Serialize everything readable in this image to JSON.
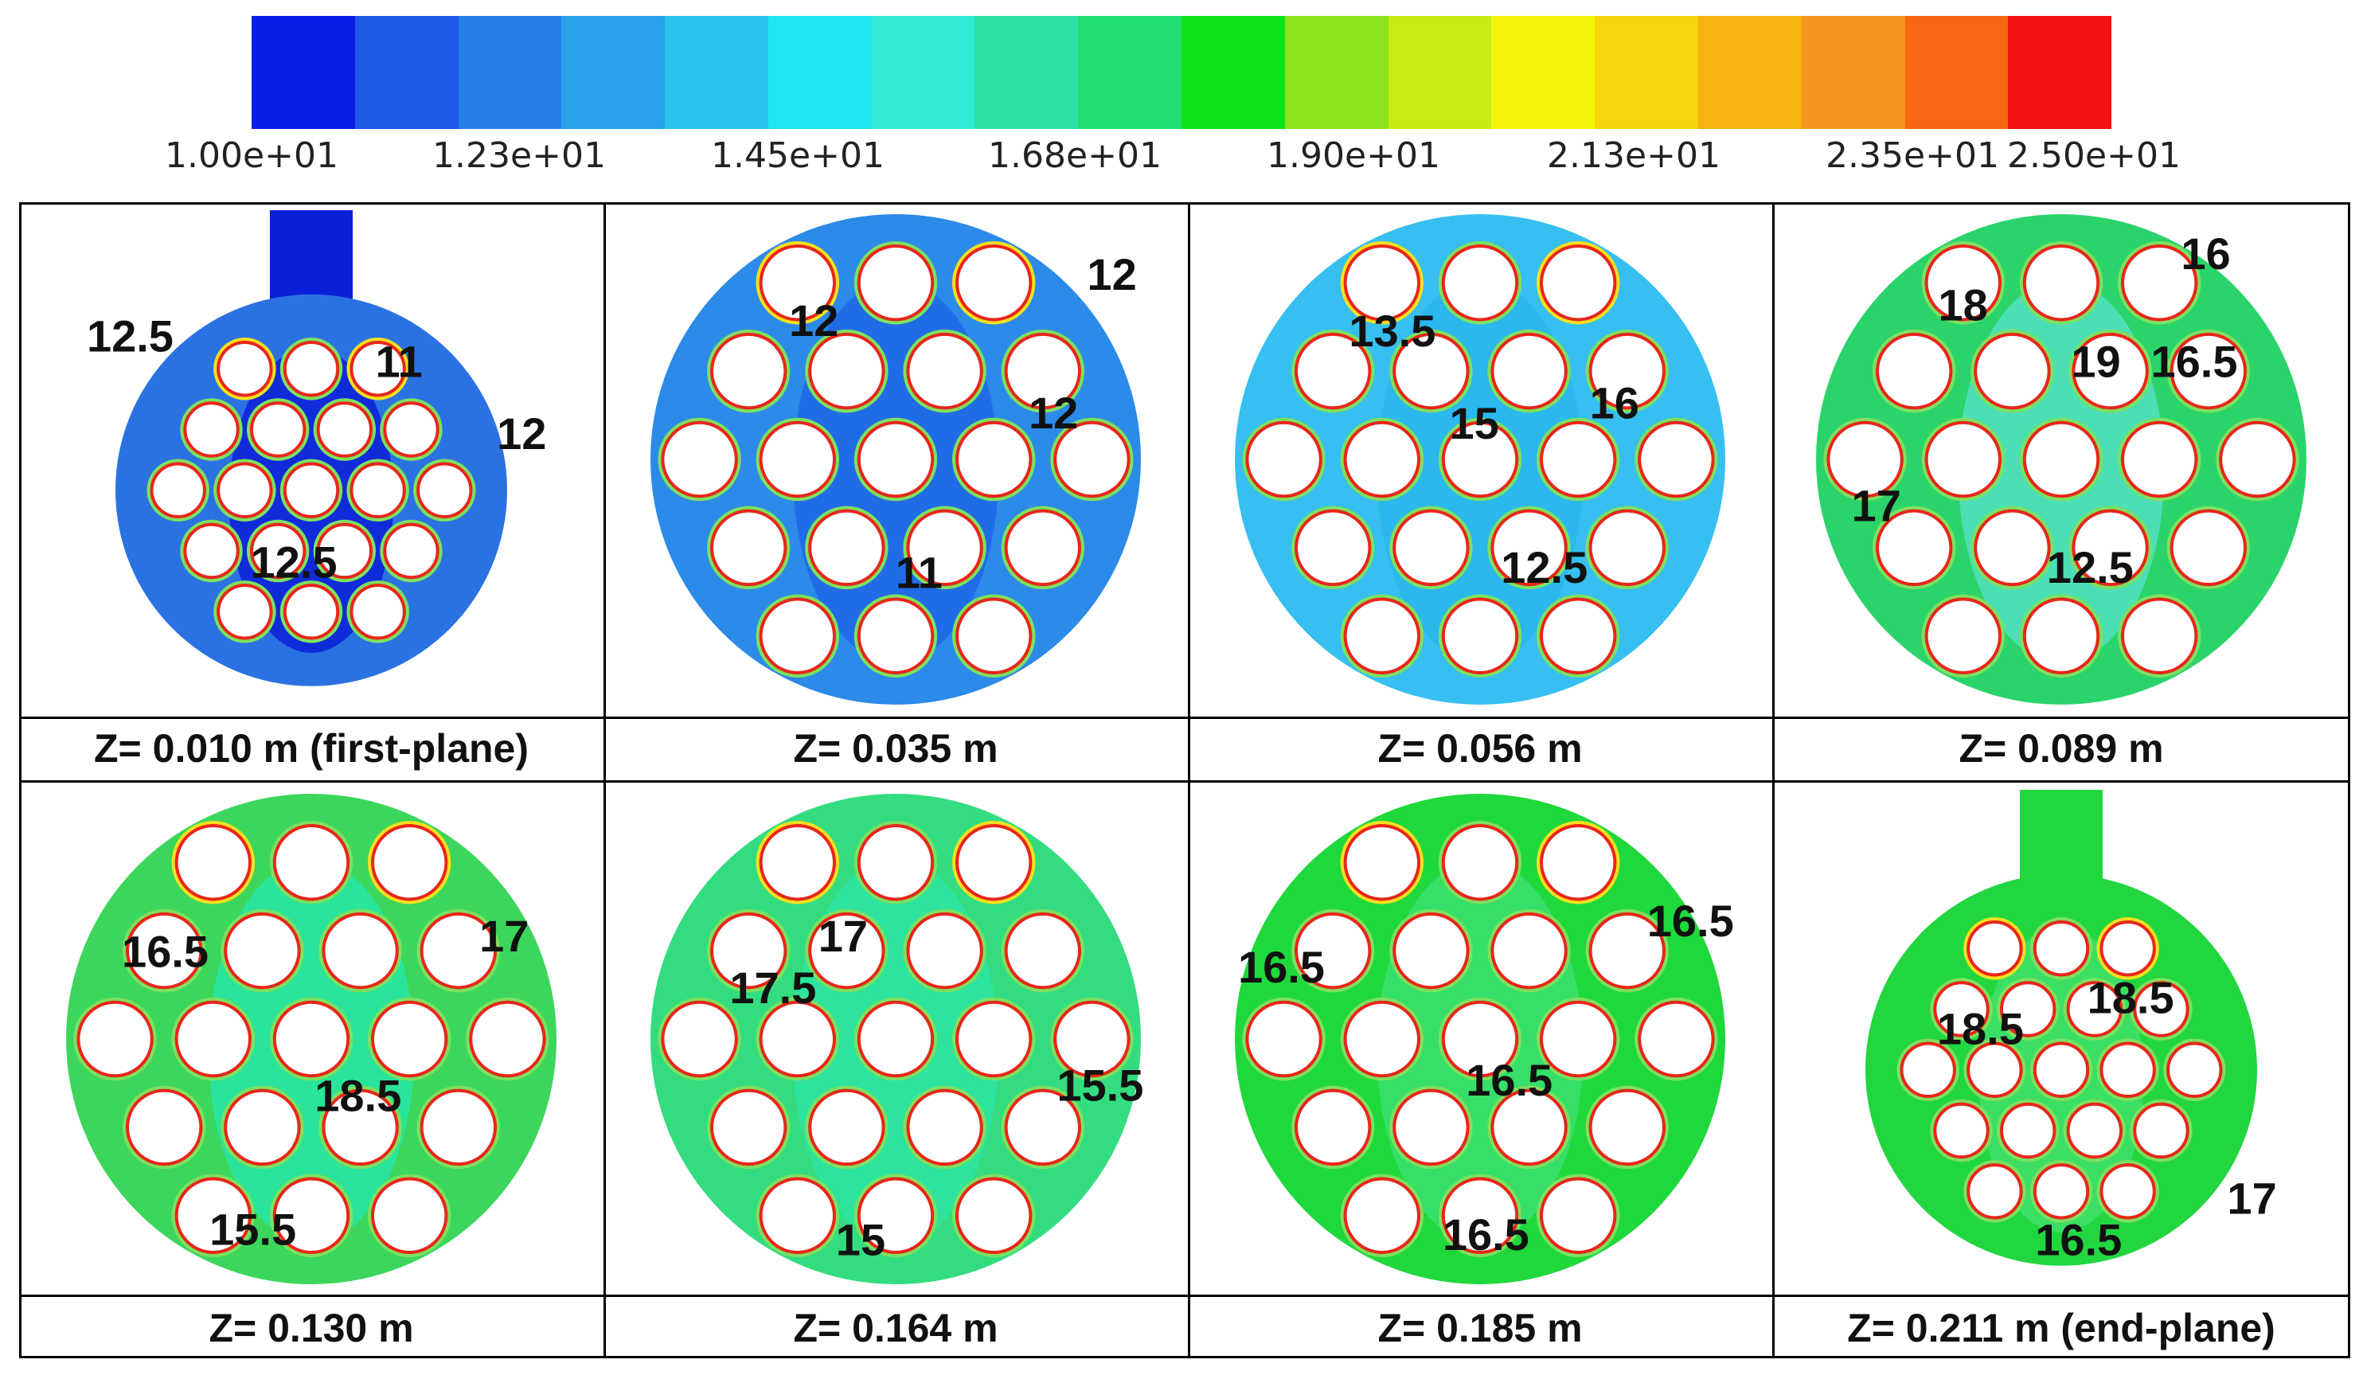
{
  "colorbar": {
    "colors": [
      "#0a1fe6",
      "#1c5ce8",
      "#2680e8",
      "#2aa0ec",
      "#2cc2ee",
      "#1fe4f4",
      "#30ecd6",
      "#2ee0a6",
      "#21e070",
      "#0ee21c",
      "#8ee41c",
      "#c8ec14",
      "#f4f40a",
      "#f6d60c",
      "#f6b410",
      "#f69420",
      "#f66814",
      "#f41414"
    ],
    "ticks": [
      "1.00e+01",
      "1.23e+01",
      "1.45e+01",
      "1.68e+01",
      "1.90e+01",
      "2.13e+01",
      "2.35e+01",
      "2.50e+01"
    ]
  },
  "panels": [
    {
      "caption": "Z= 0.010 m (first-plane)",
      "bg": "#2a72e2",
      "core": "#0b1fd8",
      "inlet": "top",
      "labels": [
        "12.5",
        "11",
        "12",
        "12.5"
      ]
    },
    {
      "caption": "Z= 0.035 m",
      "bg": "#2c8ae8",
      "core": "#1f66e6",
      "inlet": "none",
      "labels": [
        "12",
        "12",
        "12",
        "11"
      ]
    },
    {
      "caption": "Z= 0.056 m",
      "bg": "#36bff0",
      "core": "#28b6ee",
      "inlet": "none",
      "labels": [
        "13.5",
        "15",
        "16",
        "12.5"
      ]
    },
    {
      "caption": "Z= 0.089 m",
      "bg": "#2ad46a",
      "core": "#52e0c2",
      "inlet": "none",
      "labels": [
        "16",
        "18",
        "19",
        "16.5",
        "17",
        "12.5"
      ]
    },
    {
      "caption": "Z= 0.130 m",
      "bg": "#3cd65c",
      "core": "#26e6a4",
      "inlet": "none",
      "labels": [
        "16.5",
        "17",
        "18.5",
        "15.5"
      ]
    },
    {
      "caption": "Z= 0.164 m",
      "bg": "#34dc80",
      "core": "#2ee4a2",
      "inlet": "none",
      "labels": [
        "17",
        "17.5",
        "15.5",
        "15"
      ]
    },
    {
      "caption": "Z= 0.185 m",
      "bg": "#1fd83c",
      "core": "#3ae070",
      "inlet": "none",
      "labels": [
        "16.5",
        "16.5",
        "16.5",
        "16.5"
      ]
    },
    {
      "caption": "Z= 0.211 m (end-plane)",
      "bg": "#22d640",
      "core": "#3fe06a",
      "inlet": "top",
      "labels": [
        "18.5",
        "18.5",
        "17",
        "16.5"
      ]
    }
  ]
}
